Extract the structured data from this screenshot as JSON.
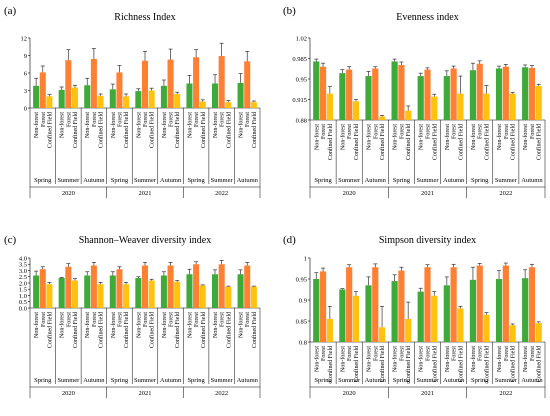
{
  "colors": {
    "Non-forest": "#3daa3a",
    "Forest": "#ff7f33",
    "Confined Field": "#ffc20e"
  },
  "categories": [
    "Non-forest",
    "Forest",
    "Confined Field"
  ],
  "seasons": [
    "Spring",
    "Summer",
    "Autumn"
  ],
  "years": [
    "2020",
    "2021",
    "2022"
  ],
  "chart_data": [
    {
      "type": "bar",
      "panel": "(a)",
      "title": "Richness Index",
      "ylim": [
        0,
        12
      ],
      "yticks": [
        "0",
        "3",
        "6",
        "9",
        "12"
      ],
      "ytick_values": [
        0,
        3,
        6,
        9,
        12
      ],
      "series": [
        {
          "name": "Non-forest",
          "values": [
            3.8,
            3.1,
            3.9,
            3.2,
            2.9,
            3.8,
            4.2,
            4.2,
            4.3
          ]
        },
        {
          "name": "Forest",
          "values": [
            6.1,
            8.2,
            8.4,
            6.1,
            8.1,
            8.3,
            8.7,
            8.9,
            8.0
          ]
        },
        {
          "name": "Confined Field",
          "values": [
            2.0,
            3.5,
            2.1,
            2.0,
            3.0,
            2.4,
            1.1,
            1.0,
            1.0
          ]
        }
      ],
      "errors": [
        [
          1.3,
          0.5,
          1.2,
          0.9,
          0.4,
          1.0,
          1.4,
          1.5,
          1.6
        ],
        [
          1.1,
          1.8,
          1.8,
          1.2,
          1.6,
          1.8,
          1.3,
          2.2,
          1.7
        ],
        [
          0.3,
          0.4,
          0.3,
          0.4,
          0.4,
          0.3,
          0.3,
          0.3,
          0.2
        ]
      ]
    },
    {
      "type": "bar",
      "panel": "(b)",
      "title": "Evenness index",
      "ylim": [
        0.88,
        1.02
      ],
      "yticks": [
        "0.88",
        "0.915",
        "0.95",
        "0.985",
        "1.02"
      ],
      "ytick_values": [
        0.88,
        0.915,
        0.95,
        0.985,
        1.02
      ],
      "series": [
        {
          "name": "Non-forest",
          "values": [
            0.98,
            0.96,
            0.955,
            0.98,
            0.955,
            0.955,
            0.965,
            0.968,
            0.97
          ]
        },
        {
          "name": "Forest",
          "values": [
            0.971,
            0.966,
            0.968,
            0.974,
            0.966,
            0.968,
            0.976,
            0.971,
            0.969
          ]
        },
        {
          "name": "Confined Field",
          "values": [
            0.925,
            0.912,
            0.886,
            0.896,
            0.92,
            0.925,
            0.925,
            0.925,
            0.938
          ]
        }
      ],
      "errors": [
        [
          0.004,
          0.006,
          0.008,
          0.004,
          0.005,
          0.009,
          0.012,
          0.004,
          0.004
        ],
        [
          0.006,
          0.005,
          0.003,
          0.005,
          0.003,
          0.004,
          0.005,
          0.004,
          0.004
        ],
        [
          0.012,
          0.003,
          0.002,
          0.008,
          0.004,
          0.03,
          0.014,
          0.002,
          0.003
        ]
      ]
    },
    {
      "type": "bar",
      "panel": "(c)",
      "title": "Shannon–Weaver diversity index",
      "ylim": [
        0,
        4
      ],
      "yticks": [
        "0.0",
        "0.5",
        "1.0",
        "1.5",
        "2.0",
        "2.5",
        "3.0",
        "3.5",
        "4.0"
      ],
      "ytick_values": [
        0,
        0.5,
        1.0,
        1.5,
        2.0,
        2.5,
        3.0,
        3.5,
        4.0
      ],
      "series": [
        {
          "name": "Non-forest",
          "values": [
            2.6,
            2.4,
            2.6,
            2.6,
            2.4,
            2.6,
            2.7,
            2.7,
            2.7
          ]
        },
        {
          "name": "Forest",
          "values": [
            3.1,
            3.3,
            3.4,
            3.1,
            3.4,
            3.4,
            3.5,
            3.5,
            3.4
          ]
        },
        {
          "name": "Confined Field",
          "values": [
            1.9,
            2.2,
            1.9,
            1.9,
            2.2,
            2.1,
            1.8,
            1.7,
            1.7
          ]
        }
      ],
      "errors": [
        [
          0.35,
          0.05,
          0.3,
          0.3,
          0.1,
          0.3,
          0.4,
          0.35,
          0.35
        ],
        [
          0.2,
          0.25,
          0.25,
          0.2,
          0.25,
          0.25,
          0.2,
          0.3,
          0.25
        ],
        [
          0.15,
          0.15,
          0.15,
          0.15,
          0.1,
          0.1,
          0.05,
          0.05,
          0.05
        ]
      ]
    },
    {
      "type": "bar",
      "panel": "(d)",
      "title": "Simpson diversity index",
      "ylim": [
        0.8,
        1.0
      ],
      "yticks": [
        "0.8",
        "0.85",
        "0.9",
        "0.95",
        "1"
      ],
      "ytick_values": [
        0.8,
        0.85,
        0.9,
        0.95,
        1.0
      ],
      "series": [
        {
          "name": "Non-forest",
          "values": [
            0.95,
            0.925,
            0.935,
            0.945,
            0.92,
            0.935,
            0.948,
            0.95,
            0.952
          ]
        },
        {
          "name": "Forest",
          "values": [
            0.968,
            0.978,
            0.978,
            0.97,
            0.978,
            0.978,
            0.982,
            0.982,
            0.978
          ]
        },
        {
          "name": "Confined Field",
          "values": [
            0.855,
            0.91,
            0.835,
            0.855,
            0.91,
            0.88,
            0.865,
            0.84,
            0.845
          ]
        }
      ],
      "errors": [
        [
          0.015,
          0.002,
          0.02,
          0.015,
          0.008,
          0.02,
          0.03,
          0.02,
          0.02
        ],
        [
          0.008,
          0.006,
          0.008,
          0.008,
          0.006,
          0.007,
          0.005,
          0.006,
          0.007
        ],
        [
          0.03,
          0.01,
          0.05,
          0.04,
          0.01,
          0.005,
          0.005,
          0.003,
          0.003
        ]
      ]
    }
  ]
}
